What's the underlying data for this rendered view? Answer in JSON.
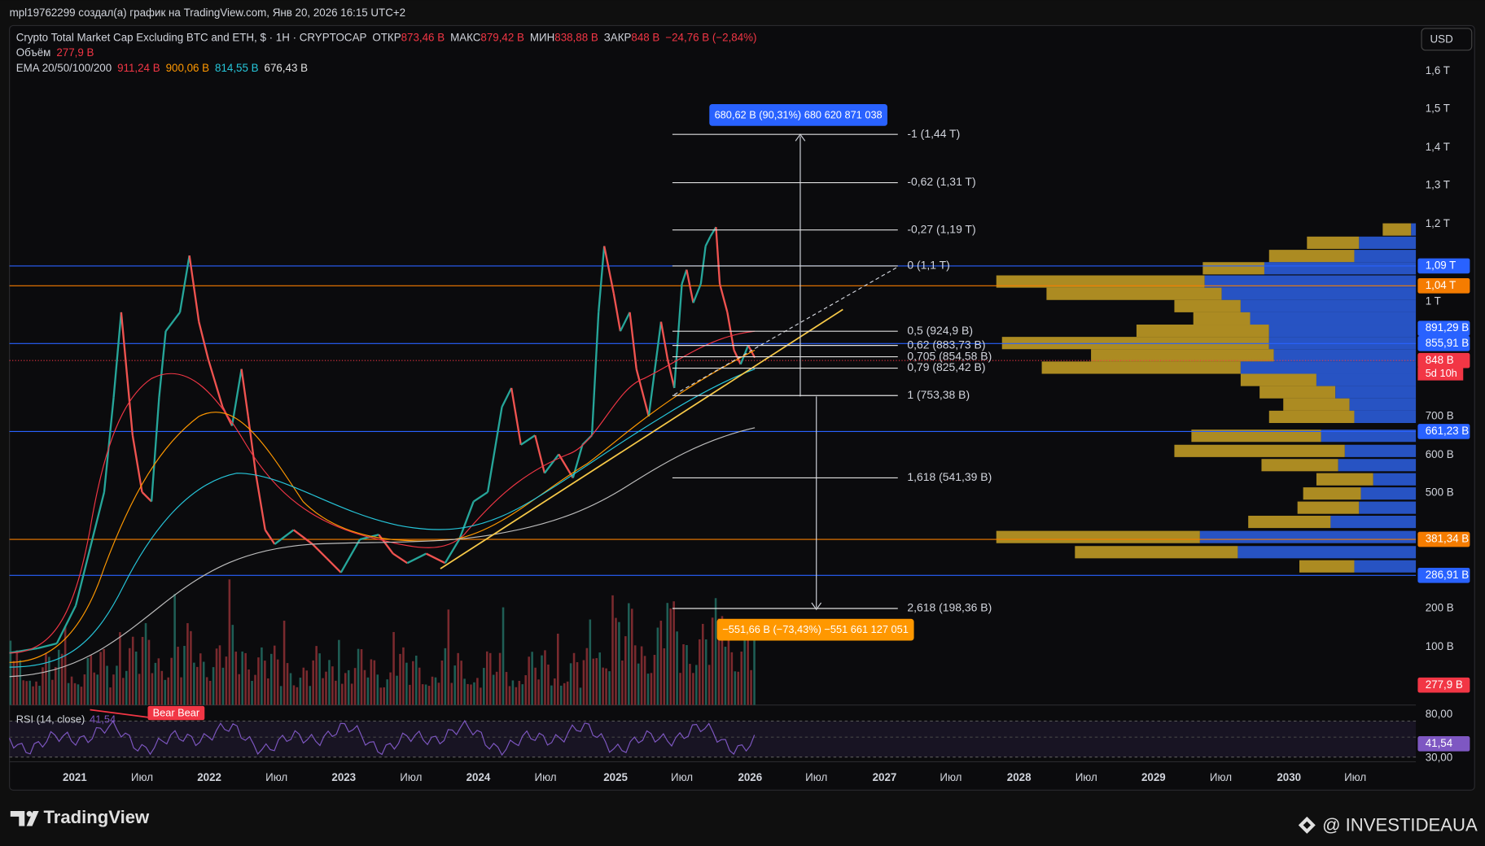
{
  "header": {
    "attribution": "mpl19762299 создал(а) график на TradingView.com, Янв 20, 2026 16:15 UTC+2"
  },
  "legend": {
    "symbol": "Crypto Total Market Cap Excluding BTC and ETH, $ · 1H · CRYPTOCAP",
    "open_label": "ОТКР",
    "open": "873,46 B",
    "high_label": "МАКС",
    "high": "879,42 B",
    "low_label": "МИН",
    "low": "838,88 B",
    "close_label": "ЗАКР",
    "close": "848 B",
    "change": "−24,76 B (−2,84%)",
    "volume_label": "Объём",
    "volume": "277,9 B",
    "ema_label": "EMA 20/50/100/200",
    "ema": [
      "911,24 B",
      "900,06 B",
      "814,55 B",
      "676,43 B"
    ]
  },
  "currency": "USD",
  "price_axis": [
    "1,6 T",
    "1,5 T",
    "1,4 T",
    "1,3 T",
    "1,2 T",
    "1 T",
    "700 B",
    "600 B",
    "500 B",
    "200 B",
    "100 B"
  ],
  "price_badges": [
    "1,09 T",
    "1,04 T",
    "891,29 B",
    "855,91 B",
    "848 B",
    "661,23 B",
    "381,34 B",
    "286,91 B",
    "277,9 B"
  ],
  "countdown": "5d 10h",
  "fib_levels": [
    "-1 (1,44 T)",
    "-0,62 (1,31 T)",
    "-0,27 (1,19 T)",
    "0 (1,1 T)",
    "0,5 (924,9 B)",
    "0,62 (883,73 B)",
    "0,705 (854,58 B)",
    "0,79 (825,42 B)",
    "1 (753,38 B)",
    "1,618 (541,39 B)",
    "2,618 (198,36 B)"
  ],
  "measure_up": "680,62 B (90,31%) 680 620 871 038",
  "measure_down": "−551,66 B (−73,43%) −551 661 127 051",
  "rsi": {
    "label": "RSI (14, close)",
    "value": "41,54",
    "axis": [
      "80,00",
      "30,00"
    ],
    "badge": "41,54",
    "signal": "Bear Bear"
  },
  "time_axis": [
    "2021",
    "Июл",
    "2022",
    "Июл",
    "2023",
    "Июл",
    "2024",
    "Июл",
    "2025",
    "Июл",
    "2026",
    "Июл",
    "2027",
    "Июл",
    "2028",
    "Июл",
    "2029",
    "Июл",
    "2030",
    "Июл"
  ],
  "footer": {
    "brand": "TradingView",
    "watermark": "@ INVESTIDEAUA"
  }
}
